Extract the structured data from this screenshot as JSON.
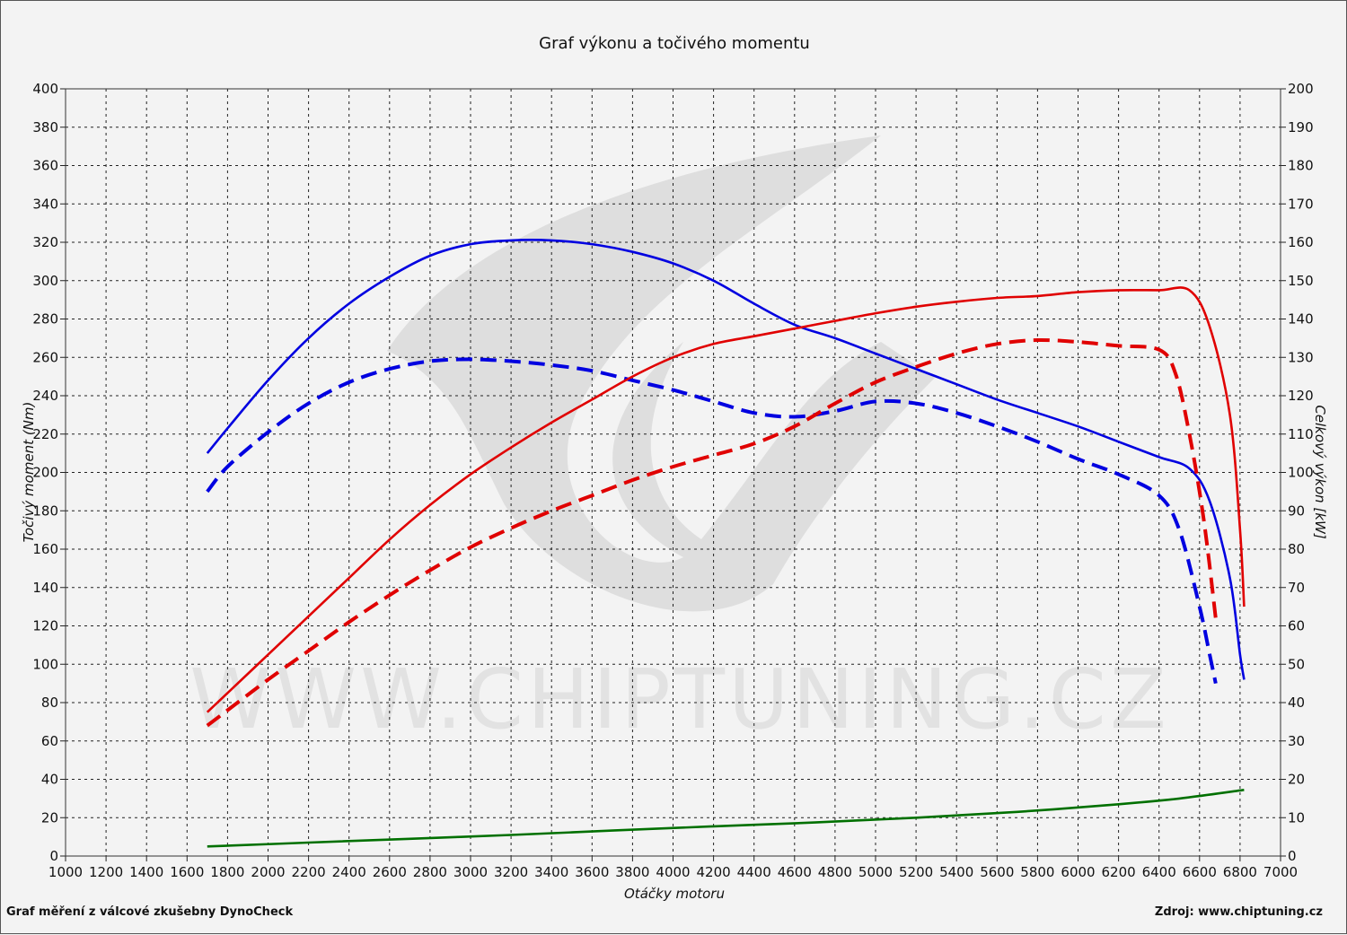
{
  "chart_data": {
    "type": "line",
    "title": "Graf výkonu a točivého momentu",
    "xlabel": "Otáčky motoru",
    "ylabel_left": "Točivý moment (Nm)",
    "ylabel_right": "Celkový výkon [kW]",
    "xlim": [
      1000,
      7000
    ],
    "ylim_left": [
      0,
      400
    ],
    "ylim_right": [
      0,
      200
    ],
    "xticks": [
      1000,
      1200,
      1400,
      1600,
      1800,
      2000,
      2200,
      2400,
      2600,
      2800,
      3000,
      3200,
      3400,
      3600,
      3800,
      4000,
      4200,
      4400,
      4600,
      4800,
      5000,
      5200,
      5400,
      5600,
      5800,
      6000,
      6200,
      6400,
      6600,
      6800,
      7000
    ],
    "yticks_left": [
      0,
      20,
      40,
      60,
      80,
      100,
      120,
      140,
      160,
      180,
      200,
      220,
      240,
      260,
      280,
      300,
      320,
      340,
      360,
      380,
      400
    ],
    "yticks_right": [
      0,
      10,
      20,
      30,
      40,
      50,
      60,
      70,
      80,
      90,
      100,
      110,
      120,
      130,
      140,
      150,
      160,
      170,
      180,
      190,
      200
    ],
    "grid": true,
    "colors": {
      "torque": "#0000e0",
      "power": "#e00000",
      "loss": "#007000"
    },
    "series": [
      {
        "axis": "left",
        "style": "solid",
        "color": "#0000e0",
        "x": [
          1700,
          1800,
          2000,
          2200,
          2400,
          2600,
          2800,
          3000,
          3200,
          3400,
          3600,
          3800,
          4000,
          4200,
          4400,
          4600,
          4800,
          5000,
          5200,
          5400,
          5600,
          5800,
          6000,
          6200,
          6400,
          6550,
          6650,
          6750,
          6800,
          6820
        ],
        "y": [
          210,
          223,
          248,
          270,
          288,
          302,
          313,
          319,
          321,
          321,
          319,
          315,
          309,
          300,
          288,
          277,
          270,
          262,
          254,
          246,
          238,
          231,
          224,
          216,
          208,
          202,
          185,
          145,
          105,
          92
        ]
      },
      {
        "axis": "left",
        "style": "dashed",
        "color": "#0000e0",
        "x": [
          1700,
          1800,
          2000,
          2200,
          2400,
          2600,
          2800,
          3000,
          3200,
          3400,
          3600,
          3800,
          4000,
          4200,
          4400,
          4600,
          4800,
          5000,
          5200,
          5400,
          5600,
          5800,
          6000,
          6200,
          6400,
          6500,
          6600,
          6650,
          6680
        ],
        "y": [
          190,
          203,
          221,
          236,
          247,
          254,
          258,
          259,
          258,
          256,
          253,
          248,
          243,
          237,
          231,
          229,
          232,
          237,
          236,
          231,
          224,
          216,
          207,
          199,
          188,
          170,
          130,
          105,
          90
        ]
      },
      {
        "axis": "right",
        "style": "solid",
        "color": "#e00000",
        "x": [
          1700,
          1800,
          2000,
          2200,
          2400,
          2600,
          2800,
          3000,
          3200,
          3400,
          3600,
          3800,
          4000,
          4200,
          4400,
          4600,
          4800,
          5000,
          5200,
          5400,
          5600,
          5800,
          6000,
          6200,
          6400,
          6550,
          6650,
          6750,
          6800,
          6820
        ],
        "y": [
          37.5,
          42.5,
          52.5,
          62.5,
          72.5,
          82.5,
          91.5,
          99.5,
          106.5,
          113,
          119,
          125,
          130,
          133.5,
          135.5,
          137.5,
          139.5,
          141.5,
          143.2,
          144.5,
          145.5,
          146,
          147,
          147.5,
          147.5,
          147.5,
          138,
          115,
          85,
          65
        ]
      },
      {
        "axis": "right",
        "style": "dashed",
        "color": "#e00000",
        "x": [
          1700,
          1800,
          2000,
          2200,
          2400,
          2600,
          2800,
          3000,
          3200,
          3400,
          3600,
          3800,
          4000,
          4200,
          4400,
          4600,
          4800,
          5000,
          5200,
          5400,
          5600,
          5800,
          6000,
          6200,
          6400,
          6480,
          6550,
          6620,
          6680
        ],
        "y": [
          34,
          38,
          46,
          53.5,
          61,
          68,
          74.5,
          80.5,
          85.5,
          90,
          94,
          98,
          101.5,
          104.5,
          107.5,
          112,
          118,
          123.5,
          127.5,
          131,
          133.5,
          134.5,
          134,
          133,
          132,
          126,
          110,
          88,
          62
        ]
      },
      {
        "axis": "left",
        "style": "solid",
        "color": "#007000",
        "x": [
          1700,
          2200,
          2700,
          3200,
          3700,
          4200,
          4700,
          5200,
          5700,
          6200,
          6500,
          6820
        ],
        "y": [
          5,
          7,
          9,
          11,
          13.3,
          15.5,
          17.5,
          20,
          23,
          27,
          30,
          34.5
        ]
      }
    ]
  },
  "footer": {
    "left": "Graf měření z válcové zkušebny DynoCheck",
    "right": "Zdroj: www.chiptuning.cz"
  },
  "watermark": "WWW.CHIPTUNING.CZ"
}
